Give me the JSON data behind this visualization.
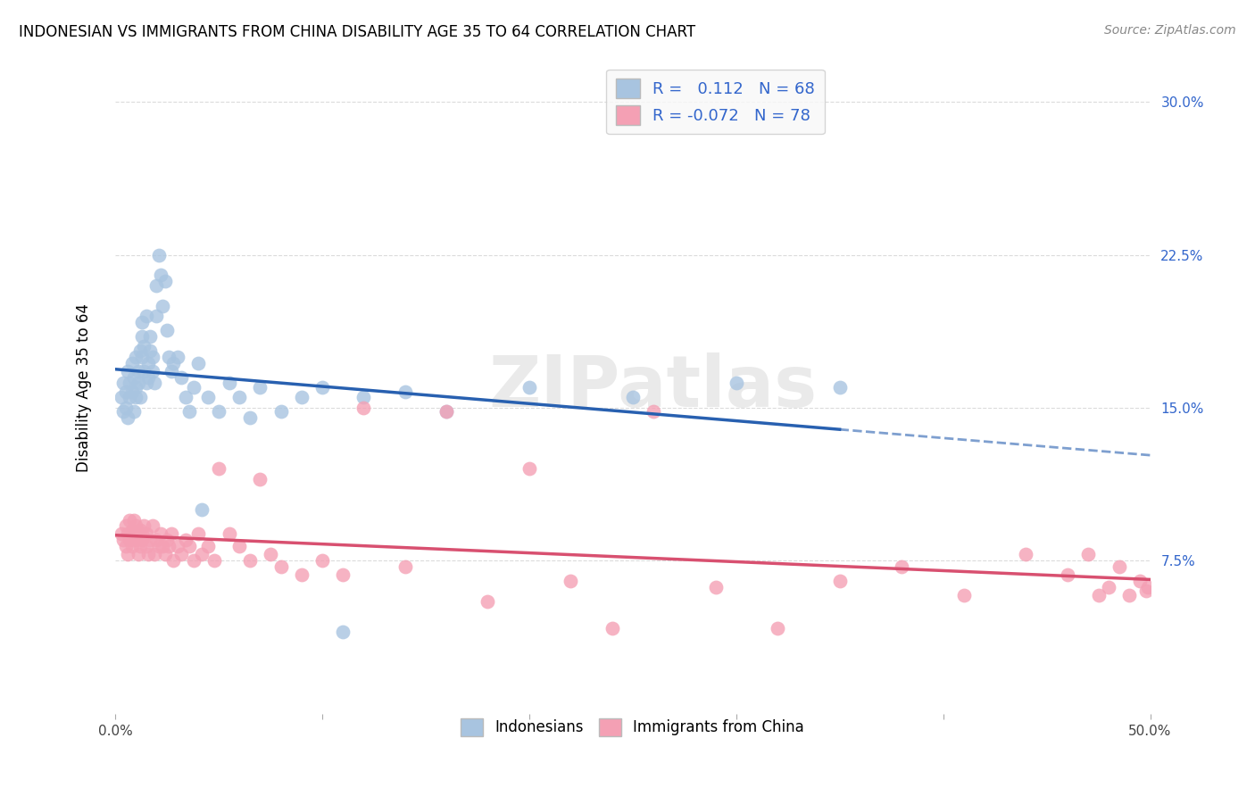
{
  "title": "INDONESIAN VS IMMIGRANTS FROM CHINA DISABILITY AGE 35 TO 64 CORRELATION CHART",
  "source": "Source: ZipAtlas.com",
  "ylabel": "Disability Age 35 to 64",
  "xlim": [
    0.0,
    0.5
  ],
  "ylim": [
    0.0,
    0.32
  ],
  "ytick_positions": [
    0.075,
    0.15,
    0.225,
    0.3
  ],
  "ytick_labels": [
    "7.5%",
    "15.0%",
    "22.5%",
    "30.0%"
  ],
  "xtick_positions": [
    0.0,
    0.1,
    0.2,
    0.3,
    0.4,
    0.5
  ],
  "xtick_labels": [
    "0.0%",
    "",
    "",
    "",
    "",
    "50.0%"
  ],
  "R_indonesian": 0.112,
  "N_indonesian": 68,
  "R_china": -0.072,
  "N_china": 78,
  "indonesian_color": "#a8c4e0",
  "china_color": "#f4a0b4",
  "indonesian_line_color": "#2860b0",
  "china_line_color": "#d85070",
  "right_axis_color": "#3366cc",
  "legend_box_color": "#f8f8f8",
  "watermark": "ZIPatlas",
  "indonesian_x": [
    0.003,
    0.004,
    0.004,
    0.005,
    0.005,
    0.006,
    0.006,
    0.007,
    0.007,
    0.008,
    0.008,
    0.009,
    0.009,
    0.01,
    0.01,
    0.01,
    0.011,
    0.011,
    0.012,
    0.012,
    0.013,
    0.013,
    0.013,
    0.014,
    0.014,
    0.015,
    0.015,
    0.016,
    0.016,
    0.017,
    0.017,
    0.018,
    0.018,
    0.019,
    0.02,
    0.02,
    0.021,
    0.022,
    0.023,
    0.024,
    0.025,
    0.026,
    0.027,
    0.028,
    0.03,
    0.032,
    0.034,
    0.036,
    0.038,
    0.04,
    0.042,
    0.045,
    0.05,
    0.055,
    0.06,
    0.065,
    0.07,
    0.08,
    0.09,
    0.1,
    0.11,
    0.12,
    0.14,
    0.16,
    0.2,
    0.25,
    0.3,
    0.35
  ],
  "indonesian_y": [
    0.155,
    0.148,
    0.162,
    0.15,
    0.158,
    0.145,
    0.168,
    0.155,
    0.162,
    0.158,
    0.172,
    0.148,
    0.165,
    0.155,
    0.16,
    0.175,
    0.162,
    0.168,
    0.178,
    0.155,
    0.185,
    0.192,
    0.175,
    0.168,
    0.18,
    0.195,
    0.162,
    0.172,
    0.165,
    0.178,
    0.185,
    0.168,
    0.175,
    0.162,
    0.21,
    0.195,
    0.225,
    0.215,
    0.2,
    0.212,
    0.188,
    0.175,
    0.168,
    0.172,
    0.175,
    0.165,
    0.155,
    0.148,
    0.16,
    0.172,
    0.1,
    0.155,
    0.148,
    0.162,
    0.155,
    0.145,
    0.16,
    0.148,
    0.155,
    0.16,
    0.04,
    0.155,
    0.158,
    0.148,
    0.16,
    0.155,
    0.162,
    0.16
  ],
  "china_x": [
    0.003,
    0.004,
    0.005,
    0.005,
    0.006,
    0.006,
    0.007,
    0.007,
    0.008,
    0.008,
    0.009,
    0.009,
    0.01,
    0.01,
    0.011,
    0.011,
    0.012,
    0.012,
    0.013,
    0.013,
    0.014,
    0.015,
    0.015,
    0.016,
    0.017,
    0.018,
    0.019,
    0.02,
    0.021,
    0.022,
    0.023,
    0.024,
    0.025,
    0.026,
    0.027,
    0.028,
    0.03,
    0.032,
    0.034,
    0.036,
    0.038,
    0.04,
    0.042,
    0.045,
    0.048,
    0.05,
    0.055,
    0.06,
    0.065,
    0.07,
    0.075,
    0.08,
    0.09,
    0.1,
    0.11,
    0.12,
    0.14,
    0.16,
    0.18,
    0.2,
    0.22,
    0.24,
    0.26,
    0.29,
    0.32,
    0.35,
    0.38,
    0.41,
    0.44,
    0.46,
    0.47,
    0.475,
    0.48,
    0.485,
    0.49,
    0.495,
    0.498,
    0.499
  ],
  "china_y": [
    0.088,
    0.085,
    0.092,
    0.082,
    0.088,
    0.078,
    0.095,
    0.085,
    0.09,
    0.082,
    0.088,
    0.095,
    0.085,
    0.092,
    0.078,
    0.088,
    0.082,
    0.09,
    0.088,
    0.085,
    0.092,
    0.088,
    0.082,
    0.078,
    0.085,
    0.092,
    0.078,
    0.085,
    0.082,
    0.088,
    0.082,
    0.078,
    0.085,
    0.082,
    0.088,
    0.075,
    0.082,
    0.078,
    0.085,
    0.082,
    0.075,
    0.088,
    0.078,
    0.082,
    0.075,
    0.12,
    0.088,
    0.082,
    0.075,
    0.115,
    0.078,
    0.072,
    0.068,
    0.075,
    0.068,
    0.15,
    0.072,
    0.148,
    0.055,
    0.12,
    0.065,
    0.042,
    0.148,
    0.062,
    0.042,
    0.065,
    0.072,
    0.058,
    0.078,
    0.068,
    0.078,
    0.058,
    0.062,
    0.072,
    0.058,
    0.065,
    0.06,
    0.062
  ]
}
